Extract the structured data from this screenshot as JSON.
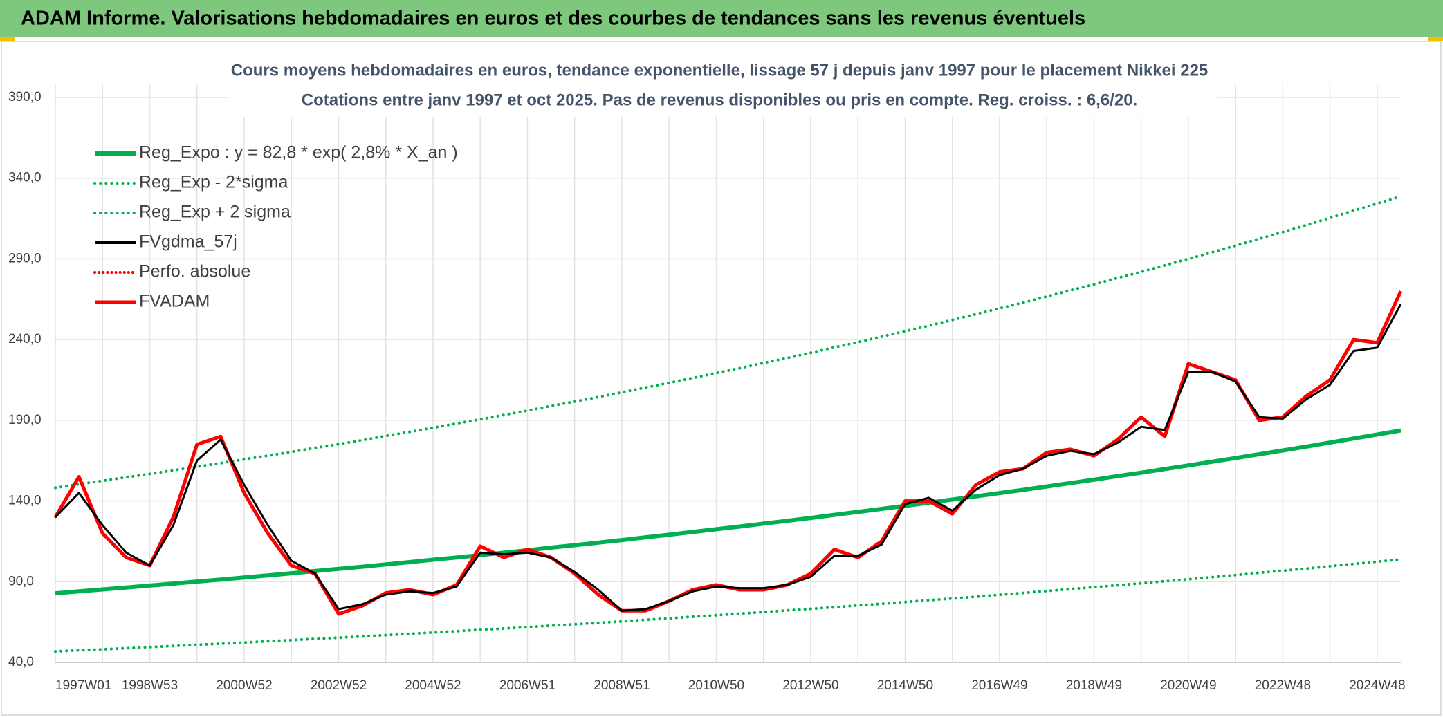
{
  "header": {
    "title": "ADAM Informe. Valorisations hebdomadaires en euros et des courbes de tendances sans les revenus éventuels"
  },
  "chart_data": {
    "type": "line",
    "title": "Cours moyens hebdomadaires en euros, tendance exponentielle, lissage 57 j depuis janv 1997 pour le placement Nikkei 225",
    "subtitle": "Cotations entre janv 1997 et oct 2025. Pas de revenus disponibles ou pris en compte. Reg. croiss. : 6,6/20.",
    "categories": [
      "1997W01",
      null,
      null,
      null,
      "1998W53",
      null,
      null,
      null,
      "2000W52",
      null,
      null,
      null,
      "2002W52",
      null,
      null,
      null,
      "2004W52",
      null,
      null,
      null,
      "2006W51",
      null,
      null,
      null,
      "2008W51",
      null,
      null,
      null,
      "2010W50",
      null,
      null,
      null,
      "2012W50",
      null,
      null,
      null,
      "2014W50",
      null,
      null,
      null,
      "2016W49",
      null,
      null,
      null,
      "2018W49",
      null,
      null,
      null,
      "2020W49",
      null,
      null,
      null,
      "2022W48",
      null,
      null,
      null,
      "2024W48",
      null
    ],
    "ylim": [
      40,
      390
    ],
    "yticks": [
      {
        "value": 40,
        "label": "40,0"
      },
      {
        "value": 90,
        "label": "90,0"
      },
      {
        "value": 140,
        "label": "140,0"
      },
      {
        "value": 190,
        "label": "190,0"
      },
      {
        "value": 240,
        "label": "240,0"
      },
      {
        "value": 290,
        "label": "290,0"
      },
      {
        "value": 340,
        "label": "340,0"
      },
      {
        "value": 390,
        "label": "390,0"
      }
    ],
    "grid": true,
    "legend": "top-left",
    "series": [
      {
        "name": "Reg_Expo : y = 82,8 * exp( 2,8% *  X_an )",
        "color": "#00b050",
        "style": "solid",
        "width": 6,
        "values": [
          82.8,
          84.0,
          85.2,
          86.4,
          87.6,
          88.8,
          90.1,
          91.3,
          92.6,
          93.9,
          95.2,
          96.6,
          97.9,
          99.3,
          100.7,
          102.1,
          103.6,
          105.0,
          106.5,
          108.0,
          109.5,
          111.1,
          112.6,
          114.2,
          115.8,
          117.5,
          119.1,
          120.8,
          122.5,
          124.2,
          126.0,
          127.7,
          129.5,
          131.4,
          133.2,
          135.1,
          137.0,
          138.9,
          140.9,
          142.9,
          144.9,
          146.9,
          149.0,
          151.1,
          153.2,
          155.4,
          157.5,
          159.8,
          162.0,
          164.3,
          166.6,
          169.0,
          171.3,
          173.7,
          176.2,
          178.7,
          181.2,
          183.7
        ]
      },
      {
        "name": "Reg_Exp - 2*sigma",
        "color": "#00b050",
        "style": "dotted",
        "width": 4,
        "values": [
          46.8,
          47.5,
          48.1,
          48.8,
          49.5,
          50.2,
          50.9,
          51.6,
          52.3,
          53.1,
          53.8,
          54.6,
          55.3,
          56.1,
          56.9,
          57.7,
          58.5,
          59.3,
          60.2,
          61.0,
          61.9,
          62.8,
          63.6,
          64.5,
          65.4,
          66.4,
          67.3,
          68.3,
          69.2,
          70.2,
          71.2,
          72.2,
          73.2,
          74.2,
          75.3,
          76.3,
          77.4,
          78.5,
          79.6,
          80.7,
          81.9,
          83.0,
          84.2,
          85.4,
          86.6,
          87.8,
          89.0,
          90.3,
          91.5,
          92.8,
          94.1,
          95.5,
          96.8,
          98.1,
          99.6,
          101.0,
          102.4,
          103.8
        ]
      },
      {
        "name": "Reg_Exp + 2 sigma",
        "color": "#00b050",
        "style": "dotted",
        "width": 4,
        "values": [
          148.2,
          150.4,
          152.5,
          154.7,
          156.8,
          159.0,
          161.3,
          163.4,
          165.8,
          168.1,
          170.4,
          172.9,
          175.2,
          177.7,
          180.3,
          182.8,
          185.4,
          188.0,
          190.6,
          193.3,
          196.0,
          198.9,
          201.6,
          204.4,
          207.3,
          210.3,
          213.2,
          216.2,
          219.3,
          222.3,
          225.5,
          228.6,
          231.8,
          235.2,
          238.4,
          241.8,
          245.2,
          248.6,
          252.2,
          255.8,
          259.4,
          262.9,
          266.7,
          270.5,
          274.2,
          278.2,
          281.9,
          286.0,
          290.0,
          294.1,
          298.2,
          302.5,
          306.6,
          310.9,
          315.4,
          319.9,
          324.3,
          328.8
        ]
      },
      {
        "name": "FVgdma_57j",
        "color": "#000000",
        "style": "solid",
        "width": 3,
        "values": [
          130,
          145,
          125,
          108,
          100,
          125,
          165,
          178,
          150,
          125,
          103,
          95,
          73,
          76,
          82,
          84,
          83,
          87,
          108,
          107,
          108,
          105,
          96,
          85,
          72,
          73,
          78,
          84,
          87,
          86,
          86,
          88,
          93,
          106,
          106,
          113,
          138,
          142,
          134,
          147,
          156,
          160,
          168,
          171,
          169,
          176,
          186,
          184,
          220,
          220,
          214,
          192,
          191,
          203,
          212,
          233,
          235,
          262
        ]
      },
      {
        "name": "Perfo. absolue",
        "color": "#ff0000",
        "style": "dotted",
        "width": 3,
        "values": [
          130,
          155,
          120,
          105,
          100,
          130,
          175,
          180,
          145,
          120,
          100,
          95,
          70,
          75,
          83,
          85,
          82,
          88,
          112,
          105,
          110,
          105,
          95,
          82,
          72,
          72,
          78,
          85,
          88,
          85,
          85,
          88,
          95,
          110,
          105,
          115,
          140,
          140,
          132,
          150,
          158,
          160,
          170,
          172,
          168,
          178,
          192,
          180,
          225,
          220,
          215,
          190,
          192,
          205,
          215,
          240,
          238,
          270
        ]
      },
      {
        "name": "FVADAM",
        "color": "#ff0000",
        "style": "solid",
        "width": 5,
        "values": [
          130,
          155,
          120,
          105,
          100,
          130,
          175,
          180,
          145,
          120,
          100,
          95,
          70,
          75,
          83,
          85,
          82,
          88,
          112,
          105,
          110,
          105,
          95,
          82,
          72,
          72,
          78,
          85,
          88,
          85,
          85,
          88,
          95,
          110,
          105,
          115,
          140,
          140,
          132,
          150,
          158,
          160,
          170,
          172,
          168,
          178,
          192,
          180,
          225,
          220,
          215,
          190,
          192,
          205,
          215,
          240,
          238,
          270
        ]
      }
    ]
  }
}
